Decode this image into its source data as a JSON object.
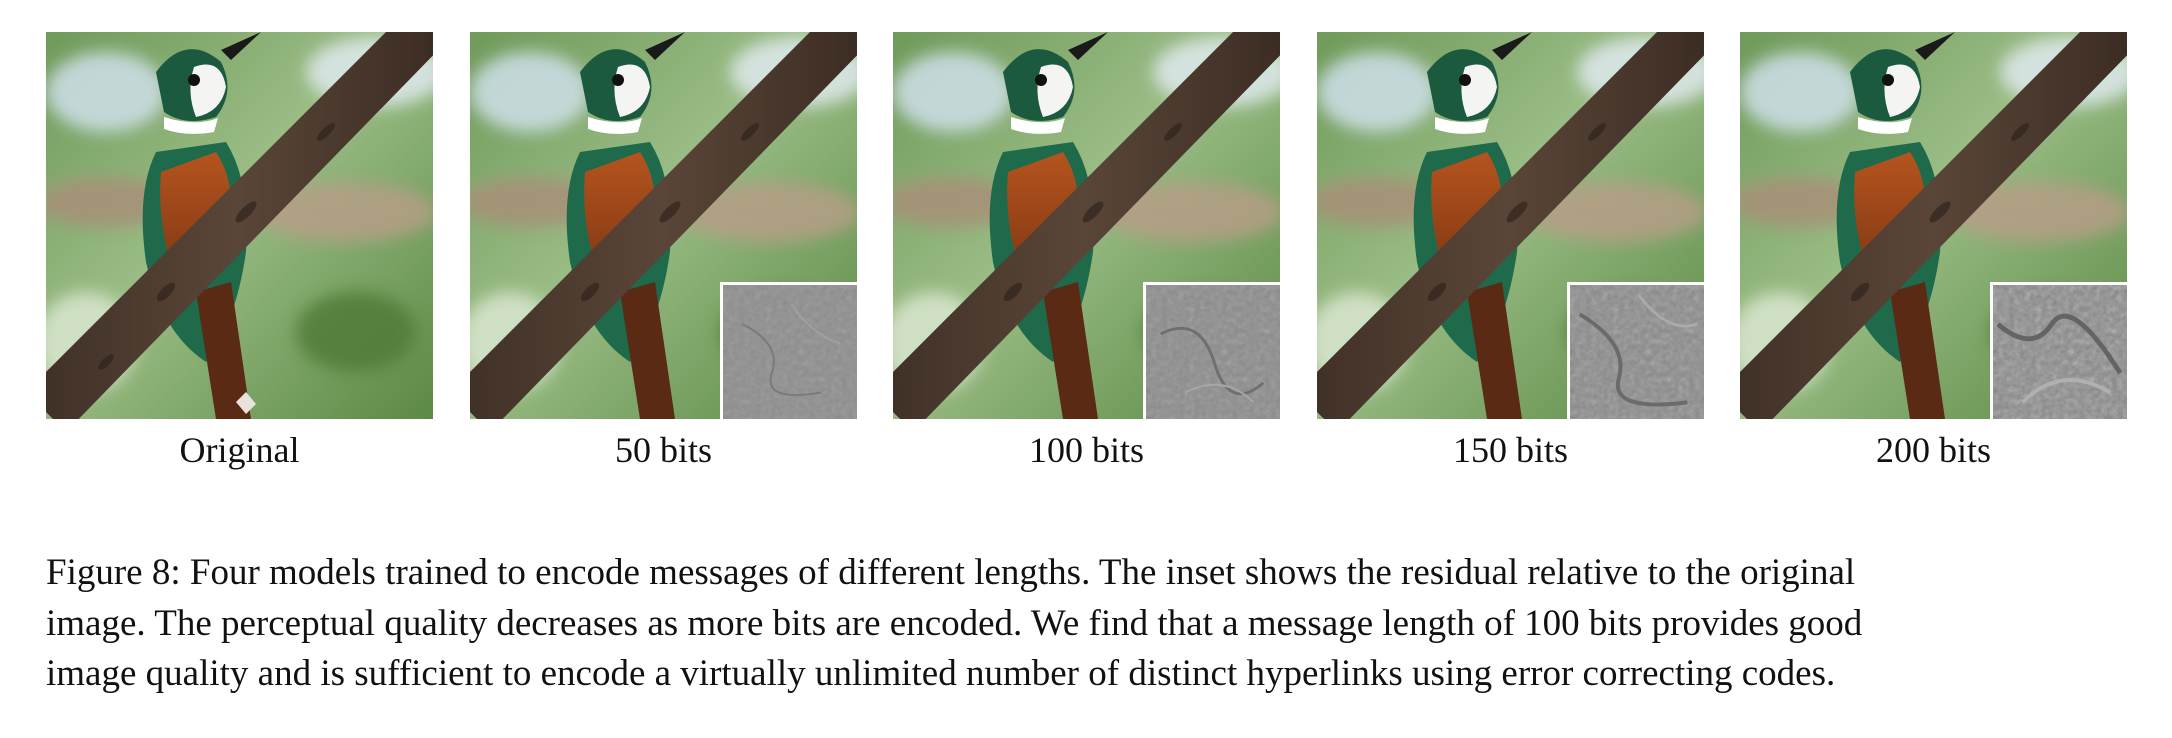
{
  "figure": {
    "panels": [
      {
        "label": "Original",
        "has_inset": false
      },
      {
        "label": "50 bits",
        "has_inset": true
      },
      {
        "label": "100 bits",
        "has_inset": true
      },
      {
        "label": "150 bits",
        "has_inset": true
      },
      {
        "label": "200 bits",
        "has_inset": true
      }
    ],
    "caption_lines": [
      "Figure 8: Four models trained to encode messages of different lengths. The inset shows the residual relative to the original",
      "image. The perceptual quality decreases as more bits are encoded. We find that a message length of 100 bits provides good",
      "image quality and is sufficient to encode a virtually unlimited number of distinct hyperlinks using error correcting codes."
    ]
  }
}
